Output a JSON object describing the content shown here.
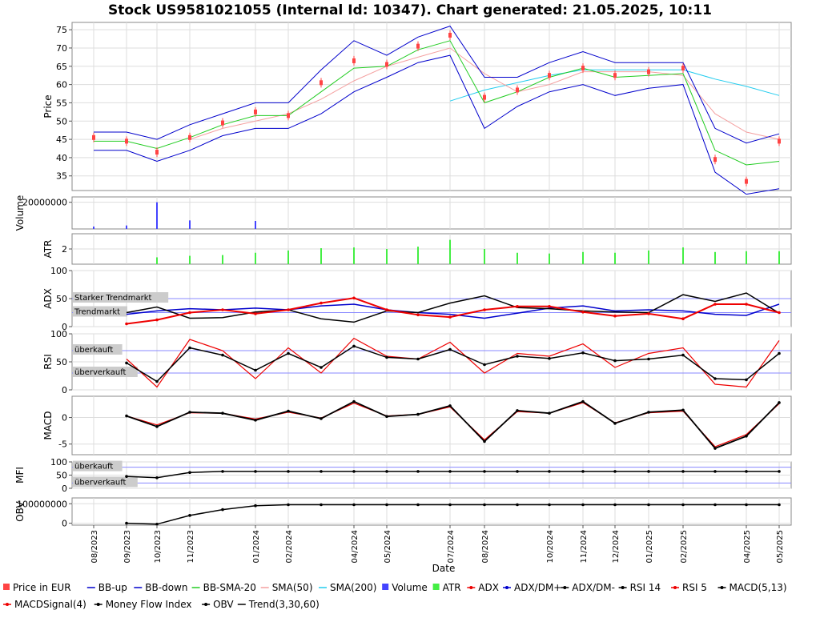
{
  "title": "Stock US9581021055 (Internal Id: 10347). Chart generated: 21.05.2025, 10:11",
  "xlabel": "Date",
  "x_ticks": [
    "08/2023",
    "09/2023",
    "10/2023",
    "11/2023",
    "01/2024",
    "02/2024",
    "04/2024",
    "05/2024",
    "07/2024",
    "08/2024",
    "10/2024",
    "11/2024",
    "12/2024",
    "01/2025",
    "02/2025",
    "04/2025",
    "05/2025"
  ],
  "panels": {
    "price": {
      "ylabel": "Price",
      "ticks": [
        "35",
        "40",
        "45",
        "50",
        "55",
        "60",
        "65",
        "70",
        "75"
      ]
    },
    "volume": {
      "ylabel": "Volume",
      "ticks": [
        "20000000"
      ]
    },
    "atr": {
      "ylabel": "ATR",
      "ticks": [
        "2"
      ]
    },
    "adx": {
      "ylabel": "ADX",
      "ticks": [
        "0",
        "50",
        "100"
      ],
      "zone_labels": [
        "Starker Trendmarkt",
        "Trendmarkt"
      ]
    },
    "rsi": {
      "ylabel": "RSI",
      "ticks": [
        "0",
        "50",
        "100"
      ],
      "zone_labels": [
        "überkauft",
        "überverkauft"
      ]
    },
    "macd": {
      "ylabel": "MACD",
      "ticks": [
        "-5",
        "0"
      ]
    },
    "mfi": {
      "ylabel": "MFI",
      "ticks": [
        "0",
        "50",
        "100"
      ],
      "zone_labels": [
        "überkauft",
        "überverkauft"
      ]
    },
    "obv": {
      "ylabel": "OBV",
      "ticks": [
        "0",
        "100000000"
      ]
    }
  },
  "legend": {
    "row1": [
      {
        "label": "Price in EUR",
        "color": "#ff4444",
        "marker": "square"
      },
      {
        "label": "BB-up",
        "color": "#0000cc",
        "marker": "line"
      },
      {
        "label": "BB-down",
        "color": "#0000cc",
        "marker": "line"
      },
      {
        "label": "BB-SMA-20",
        "color": "#22cc22",
        "marker": "line"
      },
      {
        "label": "SMA(50)",
        "color": "#f4a0a0",
        "marker": "line"
      },
      {
        "label": "SMA(200)",
        "color": "#22ccee",
        "marker": "line"
      },
      {
        "label": "Volume",
        "color": "#4444ff",
        "marker": "square"
      },
      {
        "label": "ATR",
        "color": "#44ee44",
        "marker": "square"
      },
      {
        "label": "ADX",
        "color": "#ee0000",
        "marker": "dotline"
      },
      {
        "label": "ADX/DM+",
        "color": "#0000cc",
        "marker": "dotline"
      },
      {
        "label": "ADX/DM-",
        "color": "#000000",
        "marker": "dotline"
      },
      {
        "label": "RSI 14",
        "color": "#000000",
        "marker": "dotline"
      },
      {
        "label": "RSI 5",
        "color": "#ee0000",
        "marker": "dotline"
      },
      {
        "label": "MACD(5,13)",
        "color": "#000000",
        "marker": "dotline"
      }
    ],
    "row2": [
      {
        "label": "MACDSignal(4)",
        "color": "#ee0000",
        "marker": "dotline"
      },
      {
        "label": "Money Flow Index",
        "color": "#000000",
        "marker": "dotline"
      },
      {
        "label": "OBV",
        "color": "#000000",
        "marker": "dotline"
      },
      {
        "label": "Trend(3,30,60)",
        "color": "#000000",
        "marker": "line"
      }
    ]
  },
  "chart_data": {
    "type": "line",
    "title": "Stock US9581021055 (Internal Id: 10347). Chart generated: 21.05.2025, 10:11",
    "xlabel": "Date",
    "x": [
      "2023-08",
      "2023-09",
      "2023-10",
      "2023-11",
      "2023-12",
      "2024-01",
      "2024-02",
      "2024-03",
      "2024-04",
      "2024-05",
      "2024-06",
      "2024-07",
      "2024-08",
      "2024-09",
      "2024-10",
      "2024-11",
      "2024-12",
      "2025-01",
      "2025-02",
      "2025-03",
      "2025-04",
      "2025-05"
    ],
    "series": [
      {
        "name": "Price in EUR",
        "values": [
          45.5,
          44.5,
          41.5,
          45.5,
          49.5,
          52.5,
          51.5,
          60.5,
          66.5,
          65.5,
          70.5,
          73.5,
          56.5,
          58.5,
          62.5,
          64.5,
          62.5,
          63.5,
          64.5,
          39.5,
          33.5,
          44.5
        ]
      },
      {
        "name": "BB-up",
        "values": [
          47.0,
          47.0,
          45.0,
          49.0,
          52.0,
          55.0,
          55.0,
          64.0,
          72.0,
          68.0,
          73.0,
          76.0,
          62.0,
          62.0,
          66.0,
          69.0,
          66.0,
          66.0,
          66.0,
          48.0,
          44.0,
          46.5
        ]
      },
      {
        "name": "BB-down",
        "values": [
          42.0,
          42.0,
          39.0,
          42.0,
          46.0,
          48.0,
          48.0,
          52.0,
          58.0,
          62.0,
          66.0,
          68.0,
          48.0,
          54.0,
          58.0,
          60.0,
          57.0,
          59.0,
          60.0,
          36.0,
          30.0,
          31.5
        ]
      },
      {
        "name": "BB-SMA-20",
        "values": [
          44.5,
          44.5,
          42.5,
          45.5,
          49.0,
          51.5,
          51.5,
          58.0,
          64.5,
          65.0,
          69.5,
          72.0,
          55.0,
          58.0,
          62.0,
          64.5,
          62.0,
          62.5,
          63.0,
          42.0,
          38.0,
          39.0
        ]
      },
      {
        "name": "SMA(50)",
        "values": [
          null,
          null,
          null,
          45.0,
          48.0,
          50.0,
          52.0,
          56.0,
          61.0,
          65.0,
          67.5,
          70.0,
          63.0,
          58.0,
          60.0,
          63.5,
          63.5,
          63.5,
          62.5,
          52.0,
          47.0,
          45.0
        ]
      },
      {
        "name": "SMA(200)",
        "values": [
          null,
          null,
          null,
          null,
          null,
          null,
          null,
          null,
          null,
          null,
          null,
          55.5,
          58.5,
          60.5,
          62.5,
          64.0,
          64.0,
          64.0,
          64.0,
          61.5,
          59.5,
          57.0
        ]
      },
      {
        "name": "Volume",
        "values": [
          1800000,
          2600000,
          20000000,
          6400000,
          null,
          6000000,
          null,
          null,
          null,
          null,
          null,
          null,
          null,
          null,
          null,
          null,
          null,
          null,
          null,
          null,
          null,
          null
        ]
      },
      {
        "name": "ATR",
        "values": [
          null,
          null,
          0.9,
          1.1,
          1.2,
          1.5,
          1.8,
          2.1,
          2.2,
          2.0,
          2.3,
          3.2,
          2.0,
          1.5,
          1.4,
          1.6,
          1.5,
          1.8,
          2.2,
          1.6,
          1.7,
          1.7
        ]
      },
      {
        "name": "ADX",
        "values": [
          null,
          5,
          12,
          25,
          30,
          23,
          30,
          42,
          51,
          30,
          21,
          17,
          30,
          36,
          36,
          26,
          19,
          23,
          14,
          40,
          40,
          25
        ]
      },
      {
        "name": "ADX/DM+",
        "values": [
          null,
          22,
          28,
          32,
          30,
          33,
          30,
          37,
          40,
          30,
          25,
          22,
          15,
          24,
          33,
          37,
          28,
          30,
          28,
          22,
          20,
          40
        ]
      },
      {
        "name": "ADX/DM-",
        "values": [
          null,
          25,
          35,
          15,
          16,
          26,
          30,
          14,
          8,
          28,
          25,
          42,
          55,
          34,
          32,
          28,
          26,
          25,
          57,
          45,
          60,
          24
        ]
      },
      {
        "name": "RSI 14",
        "values": [
          null,
          48,
          15,
          75,
          62,
          35,
          65,
          40,
          78,
          58,
          55,
          72,
          45,
          60,
          56,
          66,
          52,
          55,
          62,
          20,
          18,
          65
        ]
      },
      {
        "name": "RSI 5",
        "values": [
          null,
          55,
          5,
          90,
          70,
          20,
          75,
          30,
          92,
          60,
          55,
          85,
          30,
          65,
          60,
          82,
          40,
          65,
          75,
          10,
          5,
          88
        ]
      },
      {
        "name": "MACD(5,13)",
        "values": [
          null,
          0.3,
          -1.7,
          1.0,
          0.8,
          -0.5,
          1.2,
          -0.2,
          3.0,
          0.2,
          0.6,
          2.2,
          -4.5,
          1.3,
          0.8,
          3.0,
          -1.1,
          1.0,
          1.4,
          -5.8,
          -3.5,
          2.8
        ]
      },
      {
        "name": "MACDSignal(4)",
        "values": [
          null,
          0.3,
          -1.4,
          0.9,
          0.8,
          -0.3,
          1.0,
          -0.1,
          2.7,
          0.3,
          0.6,
          2.0,
          -4.2,
          1.1,
          0.8,
          2.8,
          -1.0,
          0.9,
          1.2,
          -5.5,
          -3.2,
          2.6
        ]
      },
      {
        "name": "Money Flow Index",
        "values": [
          null,
          45,
          40,
          60,
          64,
          64,
          64,
          64,
          64,
          64,
          64,
          64,
          64,
          64,
          64,
          64,
          64,
          64,
          64,
          64,
          64,
          64
        ]
      },
      {
        "name": "OBV",
        "values": [
          null,
          0,
          -5000000,
          40000000,
          70000000,
          90000000,
          95000000,
          95000000,
          95000000,
          95000000,
          95000000,
          95000000,
          95000000,
          95000000,
          95000000,
          95000000,
          95000000,
          95000000,
          95000000,
          95000000,
          95000000,
          95000000
        ]
      }
    ],
    "grid": true,
    "legend_placement": "bottom"
  }
}
